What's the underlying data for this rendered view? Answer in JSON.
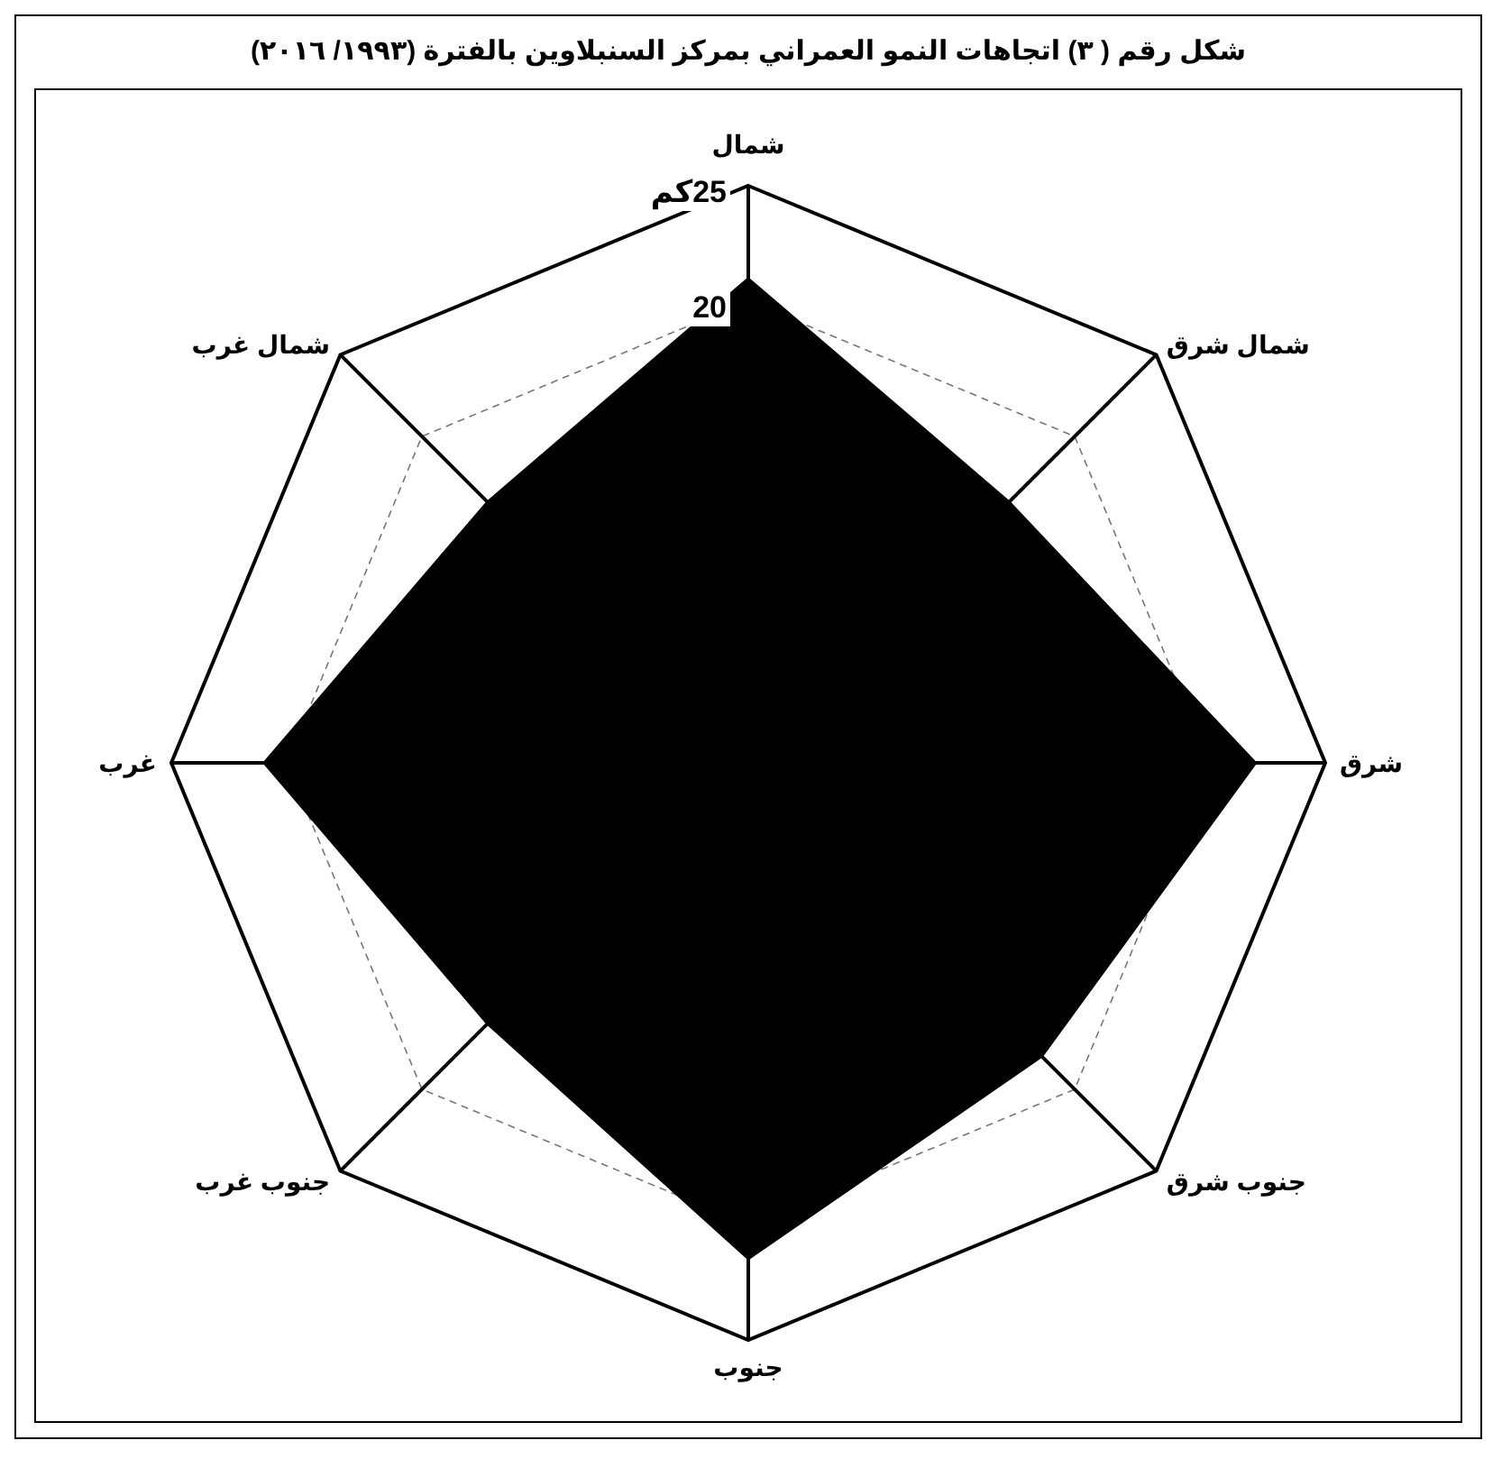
{
  "chart_data": {
    "type": "radar",
    "title": "شكل رقم ( ٣) اتجاهات النمو العمراني بمركز السنبلاوين بالفترة (١٩٩٣/ ٢٠١٦)",
    "categories": [
      "شمال",
      "شمال شرق",
      "شرق",
      "جنوب شرق",
      "جنوب",
      "جنوب غرب",
      "غرب",
      "شمال غرب"
    ],
    "series": [
      {
        "color": "#000000",
        "values": [
          21,
          16,
          22,
          18,
          21.5,
          16,
          21,
          16
        ]
      }
    ],
    "ylim": [
      0,
      25
    ],
    "yticks": [
      20,
      {
        "value": 25,
        "label": "25كم"
      }
    ],
    "grid": true
  }
}
